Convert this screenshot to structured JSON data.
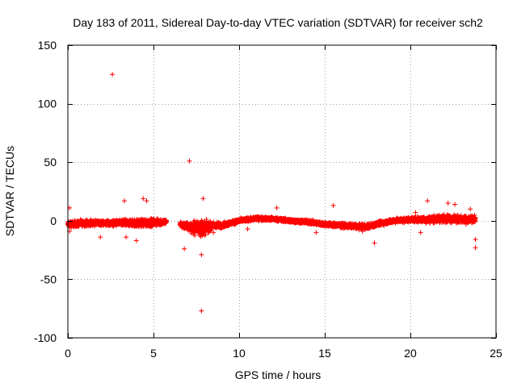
{
  "chart_data": {
    "type": "scatter",
    "title": "Day 183 of 2011, Sidereal Day-to-day VTEC variation (SDTVAR) for receiver sch2",
    "xlabel": "GPS time / hours",
    "ylabel": "SDTVAR / TECUs",
    "xlim": [
      0,
      25
    ],
    "ylim": [
      -100,
      150
    ],
    "xticks": [
      0,
      5,
      10,
      15,
      20,
      25
    ],
    "yticks": [
      -100,
      -50,
      0,
      50,
      100,
      150
    ],
    "xtick_labels": [
      "0",
      "5",
      "10",
      "15",
      "20",
      "25"
    ],
    "ytick_labels": [
      "-100",
      "-50",
      "0",
      "50",
      "100",
      "150"
    ],
    "grid": true,
    "marker": "+",
    "marker_color": "#ff0000",
    "series": [
      {
        "name": "SDTVAR",
        "gaps": [
          [
            5.75,
            6.55
          ]
        ],
        "trend": [
          [
            0,
            -3
          ],
          [
            1,
            -2
          ],
          [
            2,
            -2
          ],
          [
            3,
            -2
          ],
          [
            4,
            -2
          ],
          [
            5,
            -1.5
          ],
          [
            5.75,
            -1
          ],
          [
            6.55,
            -3
          ],
          [
            7,
            -5
          ],
          [
            7.5,
            -6
          ],
          [
            8,
            -6
          ],
          [
            8.5,
            -4
          ],
          [
            9,
            -4
          ],
          [
            9.5,
            -2
          ],
          [
            10,
            0
          ],
          [
            11,
            2
          ],
          [
            12,
            1.5
          ],
          [
            13,
            0
          ],
          [
            14,
            -1
          ],
          [
            15,
            -3
          ],
          [
            16,
            -4
          ],
          [
            17,
            -5
          ],
          [
            17.5,
            -5
          ],
          [
            18,
            -3
          ],
          [
            19,
            0
          ],
          [
            20,
            1
          ],
          [
            21,
            1
          ],
          [
            22,
            2
          ],
          [
            23,
            1
          ],
          [
            23.8,
            1
          ]
        ],
        "spread": [
          [
            0,
            4
          ],
          [
            2,
            3
          ],
          [
            3.5,
            4
          ],
          [
            4.5,
            5
          ],
          [
            5.75,
            3
          ],
          [
            6.55,
            3
          ],
          [
            7,
            5
          ],
          [
            7.8,
            10
          ],
          [
            8.5,
            4
          ],
          [
            9.5,
            2.5
          ],
          [
            12,
            2
          ],
          [
            15,
            2.5
          ],
          [
            17.5,
            3
          ],
          [
            19,
            2.5
          ],
          [
            20.5,
            3
          ],
          [
            21,
            4
          ],
          [
            22.5,
            4.5
          ],
          [
            23.8,
            4
          ]
        ],
        "outliers": [
          {
            "x": 2.6,
            "y": 125
          },
          {
            "x": 7.1,
            "y": 51
          },
          {
            "x": 7.8,
            "y": -77
          },
          {
            "x": 7.9,
            "y": 19
          },
          {
            "x": 3.3,
            "y": 17
          },
          {
            "x": 4.4,
            "y": 19
          },
          {
            "x": 4.6,
            "y": 17
          },
          {
            "x": 6.8,
            "y": -24
          },
          {
            "x": 7.8,
            "y": -29
          },
          {
            "x": 15.5,
            "y": 13
          },
          {
            "x": 22.2,
            "y": 15
          },
          {
            "x": 22.6,
            "y": 14
          },
          {
            "x": 23.8,
            "y": -16
          },
          {
            "x": 23.8,
            "y": -23
          },
          {
            "x": 17.9,
            "y": -19
          },
          {
            "x": 21.0,
            "y": 17
          },
          {
            "x": 20.6,
            "y": -10
          },
          {
            "x": 12.2,
            "y": 11
          },
          {
            "x": 3.4,
            "y": -14
          },
          {
            "x": 0.1,
            "y": 11
          },
          {
            "x": 0.1,
            "y": -9
          },
          {
            "x": 1.9,
            "y": -14
          },
          {
            "x": 4.0,
            "y": -17
          },
          {
            "x": 14.5,
            "y": -10
          },
          {
            "x": 17.2,
            "y": -9
          },
          {
            "x": 8.5,
            "y": -10
          },
          {
            "x": 10.5,
            "y": -7
          },
          {
            "x": 20.3,
            "y": 7
          },
          {
            "x": 23.5,
            "y": 10
          }
        ]
      }
    ]
  }
}
